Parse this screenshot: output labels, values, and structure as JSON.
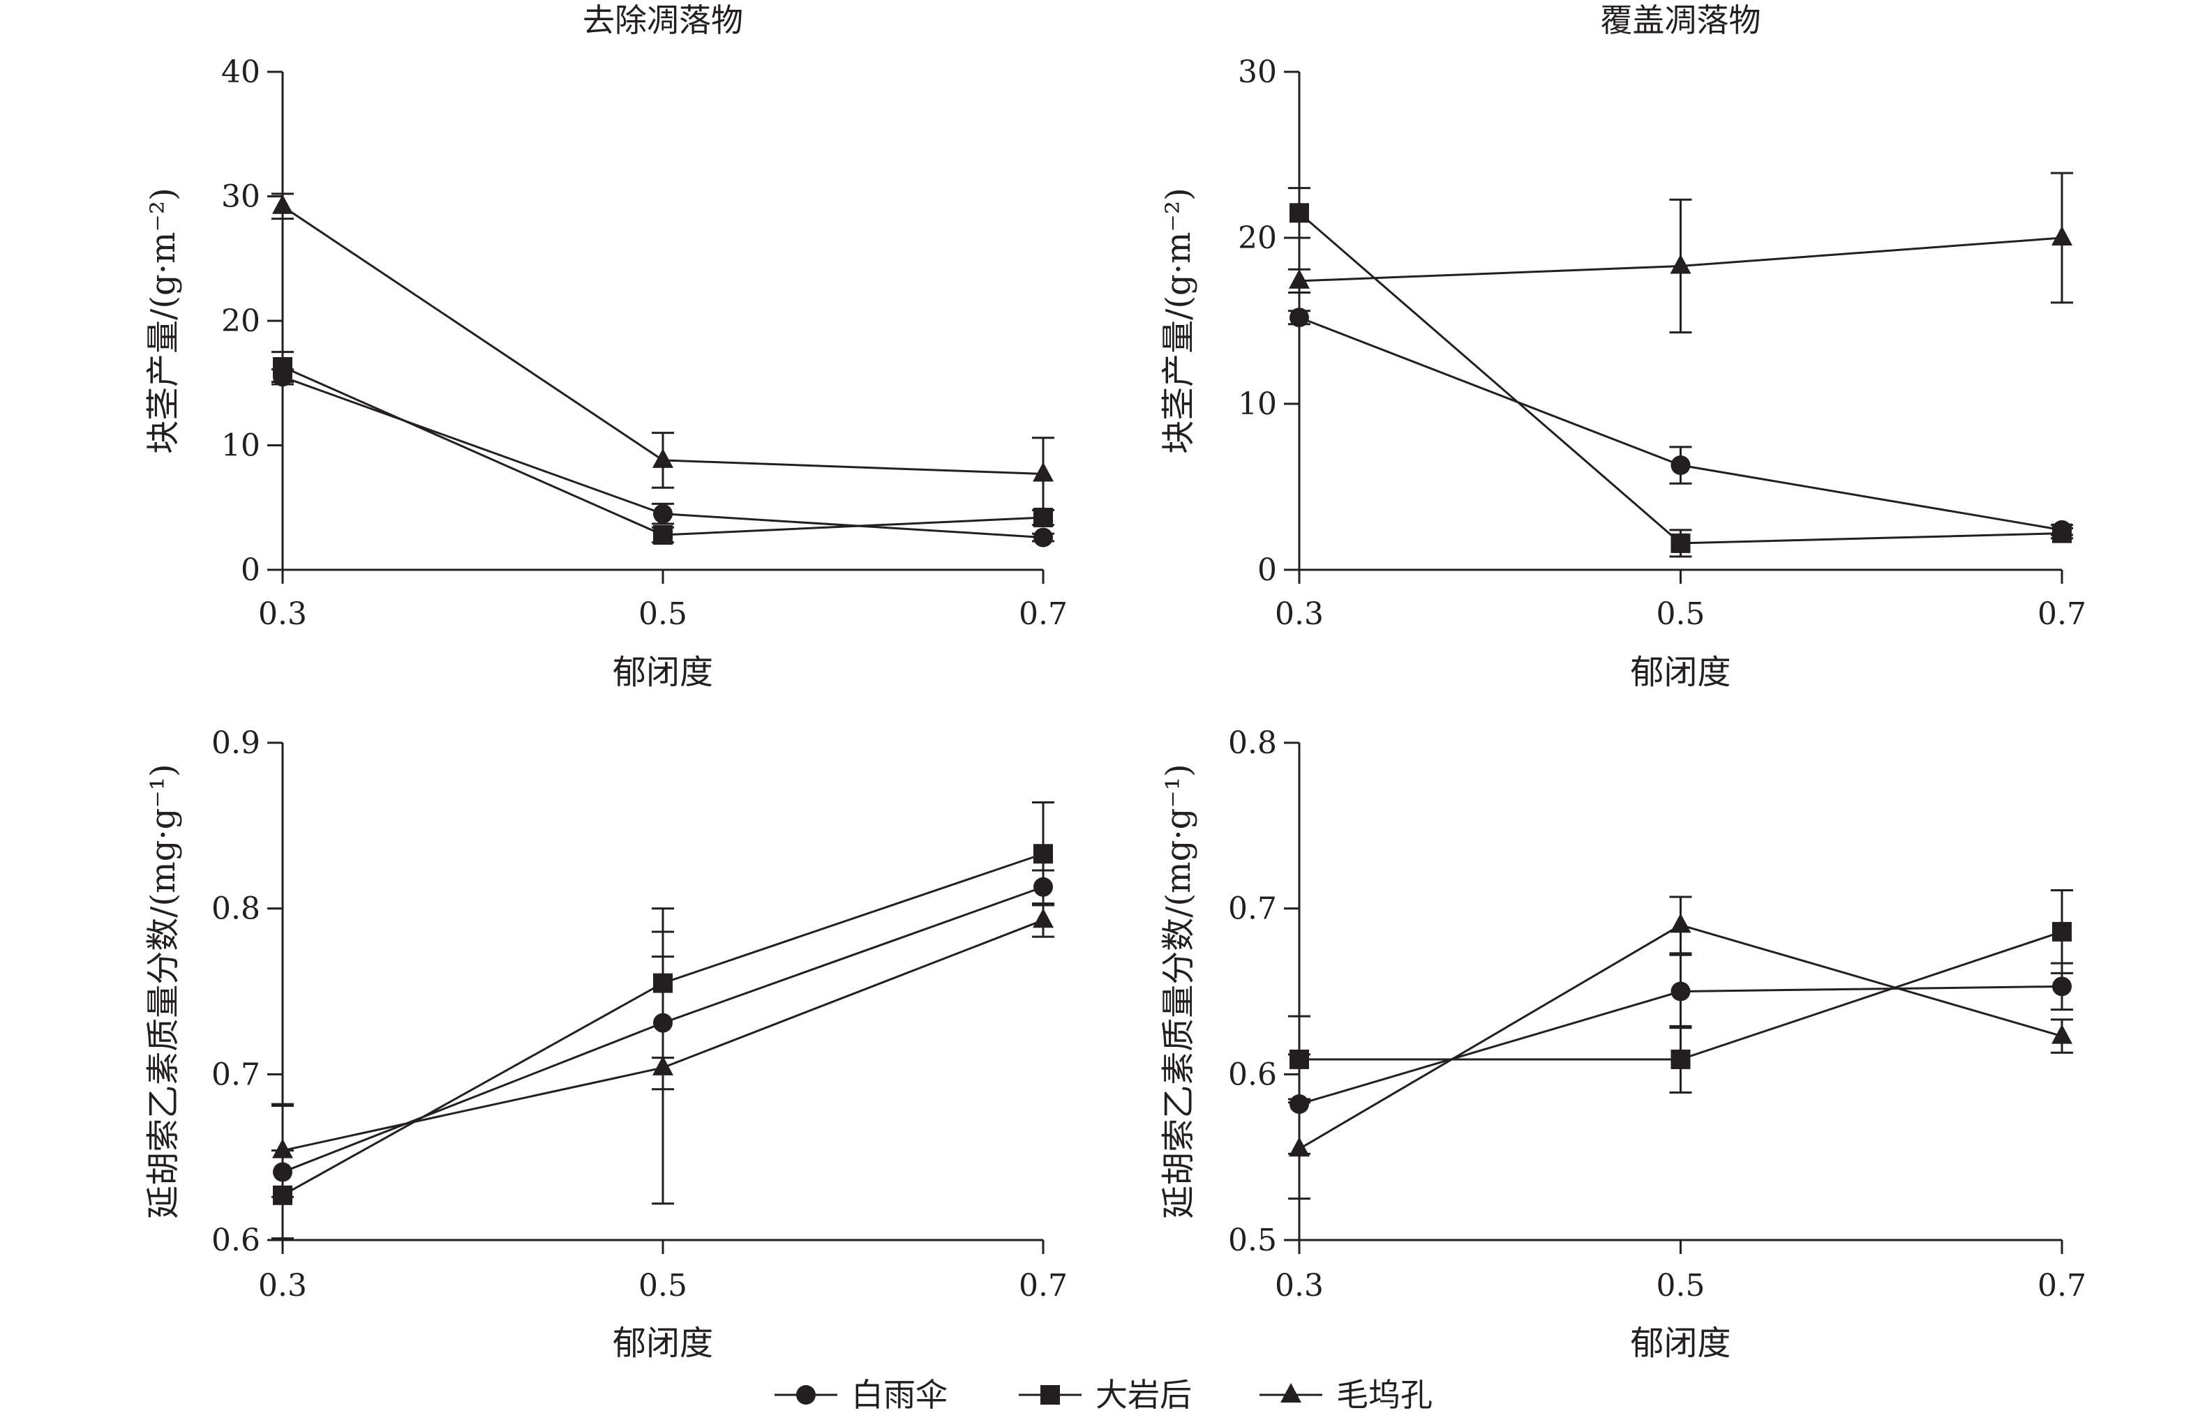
{
  "legend": [
    "白雨伞",
    "大岩后",
    "毛坞孔"
  ],
  "chart_data": [
    {
      "type": "line",
      "title": "去除凋落物",
      "xlabel": "郁闭度",
      "ylabel": "块茎产量/(g·m⁻²)",
      "x": [
        0.3,
        0.5,
        0.7
      ],
      "ylim": [
        0,
        40
      ],
      "yticks": [
        0,
        10,
        20,
        30,
        40
      ],
      "ytick_labels": [
        "0",
        "10",
        "20",
        "30",
        "40"
      ],
      "xtick_labels": [
        "0.3",
        "0.5",
        "0.7"
      ],
      "series": [
        {
          "name": "白雨伞",
          "marker": "circle",
          "values": [
            15.5,
            4.5,
            2.6
          ],
          "err": [
            0.6,
            0.8,
            0.3
          ]
        },
        {
          "name": "大岩后",
          "marker": "square",
          "values": [
            16.3,
            2.8,
            4.2
          ],
          "err": [
            1.2,
            0.6,
            0.6
          ]
        },
        {
          "name": "毛坞孔",
          "marker": "triangle",
          "values": [
            29.2,
            8.8,
            7.7
          ],
          "err": [
            1.0,
            2.2,
            2.9
          ]
        }
      ]
    },
    {
      "type": "line",
      "title": "覆盖凋落物",
      "xlabel": "郁闭度",
      "ylabel": "块茎产量/(g·m⁻²)",
      "x": [
        0.3,
        0.5,
        0.7
      ],
      "ylim": [
        0,
        30
      ],
      "yticks": [
        0,
        10,
        20,
        30
      ],
      "ytick_labels": [
        "0",
        "10",
        "20",
        "30"
      ],
      "xtick_labels": [
        "0.3",
        "0.5",
        "0.7"
      ],
      "series": [
        {
          "name": "白雨伞",
          "marker": "circle",
          "values": [
            15.2,
            6.3,
            2.4
          ],
          "err": [
            0.4,
            1.1,
            0.3
          ]
        },
        {
          "name": "大岩后",
          "marker": "square",
          "values": [
            21.5,
            1.6,
            2.2
          ],
          "err": [
            1.5,
            0.8,
            0.3
          ]
        },
        {
          "name": "毛坞孔",
          "marker": "triangle",
          "values": [
            17.4,
            18.3,
            20.0
          ],
          "err": [
            0.7,
            4.0,
            3.9
          ]
        }
      ]
    },
    {
      "type": "line",
      "title": "",
      "xlabel": "郁闭度",
      "ylabel": "延胡索乙素质量分数/(mg·g⁻¹)",
      "x": [
        0.3,
        0.5,
        0.7
      ],
      "ylim": [
        0.6,
        0.9
      ],
      "yticks": [
        0.6,
        0.7,
        0.8,
        0.9
      ],
      "ytick_labels": [
        "0.6",
        "0.7",
        "0.8",
        "0.9"
      ],
      "xtick_labels": [
        "0.3",
        "0.5",
        "0.7"
      ],
      "series": [
        {
          "name": "白雨伞",
          "marker": "circle",
          "values": [
            0.641,
            0.731,
            0.813
          ],
          "err": [
            0.04,
            0.04,
            0.01
          ]
        },
        {
          "name": "大岩后",
          "marker": "square",
          "values": [
            0.627,
            0.755,
            0.833
          ],
          "err": [
            0.027,
            0.045,
            0.031
          ]
        },
        {
          "name": "毛坞孔",
          "marker": "triangle",
          "values": [
            0.654,
            0.704,
            0.793
          ],
          "err": [
            0.028,
            0.082,
            0.01
          ]
        }
      ]
    },
    {
      "type": "line",
      "title": "",
      "xlabel": "郁闭度",
      "ylabel": "延胡索乙素质量分数/(mg·g⁻¹)",
      "x": [
        0.3,
        0.5,
        0.7
      ],
      "ylim": [
        0.5,
        0.8
      ],
      "yticks": [
        0.5,
        0.6,
        0.7,
        0.8
      ],
      "ytick_labels": [
        "0.5",
        "0.6",
        "0.7",
        "0.8"
      ],
      "xtick_labels": [
        "0.3",
        "0.5",
        "0.7"
      ],
      "series": [
        {
          "name": "白雨伞",
          "marker": "circle",
          "values": [
            0.582,
            0.65,
            0.653
          ],
          "err": [
            0.03,
            0.022,
            0.014
          ]
        },
        {
          "name": "大岩后",
          "marker": "square",
          "values": [
            0.609,
            0.609,
            0.686
          ],
          "err": [
            0.026,
            0.02,
            0.025
          ]
        },
        {
          "name": "毛坞孔",
          "marker": "triangle",
          "values": [
            0.555,
            0.69,
            0.623
          ],
          "err": [
            0.03,
            0.017,
            0.01
          ]
        }
      ]
    }
  ]
}
